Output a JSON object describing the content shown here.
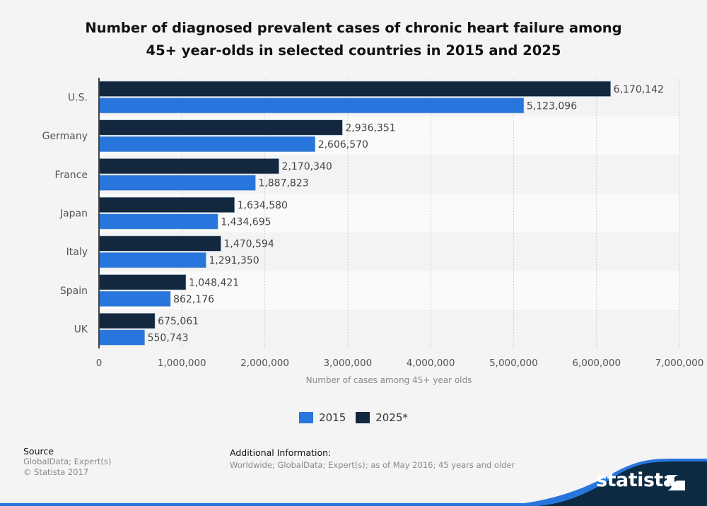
{
  "title_line1": "Number of diagnosed prevalent cases of chronic heart failure among",
  "title_line2": "45+ year-olds in selected countries in 2015 and 2025",
  "chart_data": {
    "type": "bar",
    "orientation": "horizontal",
    "title": "Number of diagnosed prevalent cases of chronic heart failure among 45+ year-olds in selected countries in 2015 and 2025",
    "xlabel": "Number of cases among 45+ year olds",
    "ylabel": "",
    "categories": [
      "U.S.",
      "Germany",
      "France",
      "Japan",
      "Italy",
      "Spain",
      "UK"
    ],
    "series": [
      {
        "name": "2025*",
        "color": "#13283f",
        "values": [
          6170142,
          2936351,
          2170340,
          1634580,
          1470594,
          1048421,
          675061
        ],
        "labels": [
          "6,170,142",
          "2,936,351",
          "2,170,340",
          "1,634,580",
          "1,470,594",
          "1,048,421",
          "675,061"
        ]
      },
      {
        "name": "2015",
        "color": "#2876dd",
        "values": [
          5123096,
          2606570,
          1887823,
          1434695,
          1291350,
          862176,
          550743
        ],
        "labels": [
          "5,123,096",
          "2,606,570",
          "1,887,823",
          "1,434,695",
          "1,291,350",
          "862,176",
          "550,743"
        ]
      }
    ],
    "xlim": [
      0,
      7000000
    ],
    "xticks": [
      0,
      1000000,
      2000000,
      3000000,
      4000000,
      5000000,
      6000000,
      7000000
    ],
    "xtick_labels": [
      "0",
      "1,000,000",
      "2,000,000",
      "3,000,000",
      "4,000,000",
      "5,000,000",
      "6,000,000",
      "7,000,000"
    ],
    "grid": true,
    "legend": [
      {
        "name": "2015",
        "color": "#2876dd"
      },
      {
        "name": "2025*",
        "color": "#13283f"
      }
    ],
    "legend_position": "bottom"
  },
  "footer": {
    "source_heading": "Source",
    "source_lines": [
      "GlobalData; Expert(s)",
      "© Statista 2017"
    ],
    "info_heading": "Additional Information:",
    "info_text": "Worldwide; GlobalData; Expert(s); as of May 2016; 45 years and older"
  },
  "brand": {
    "name": "statista",
    "colors": {
      "navy": "#0c2a42",
      "blue": "#2876dd"
    }
  }
}
